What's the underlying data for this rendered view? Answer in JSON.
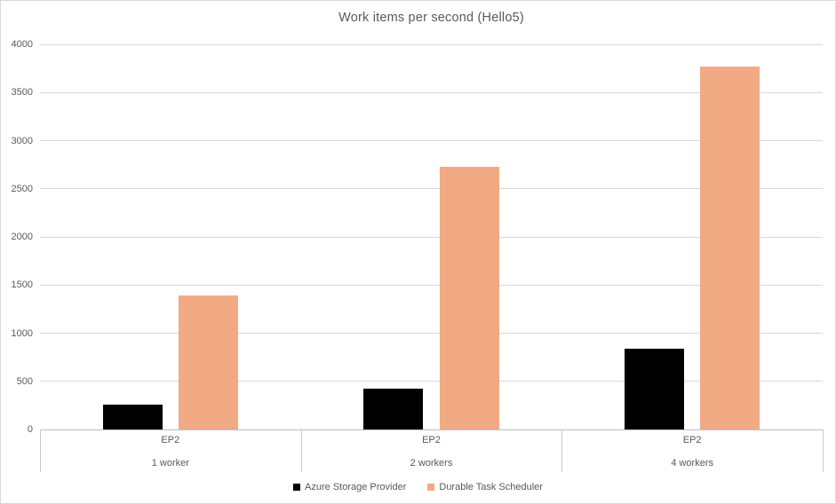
{
  "chart_data": {
    "type": "bar",
    "title": "Work items per second (Hello5)",
    "xlabel": "",
    "ylabel": "",
    "grid": true,
    "legend_position": "bottom",
    "y_axis": {
      "min": 0,
      "max": 4000,
      "tick_step": 500,
      "ticks": [
        0,
        500,
        1000,
        1500,
        2000,
        2500,
        3000,
        3500,
        4000
      ]
    },
    "groups": [
      {
        "top_label": "EP2",
        "bottom_label": "1 worker"
      },
      {
        "top_label": "EP2",
        "bottom_label": "2 workers"
      },
      {
        "top_label": "EP2",
        "bottom_label": "4 workers"
      }
    ],
    "series": [
      {
        "name": "Azure Storage Provider",
        "color": "#000000",
        "values": [
          260,
          420,
          840
        ]
      },
      {
        "name": "Durable Task Scheduler",
        "color": "#F2AA84",
        "values": [
          1390,
          2730,
          3770
        ]
      }
    ],
    "colors": {
      "gridline": "#D9D9D9",
      "axis_line": "#BFBFBF",
      "text": "#595959",
      "background": "#FFFFFF"
    }
  }
}
